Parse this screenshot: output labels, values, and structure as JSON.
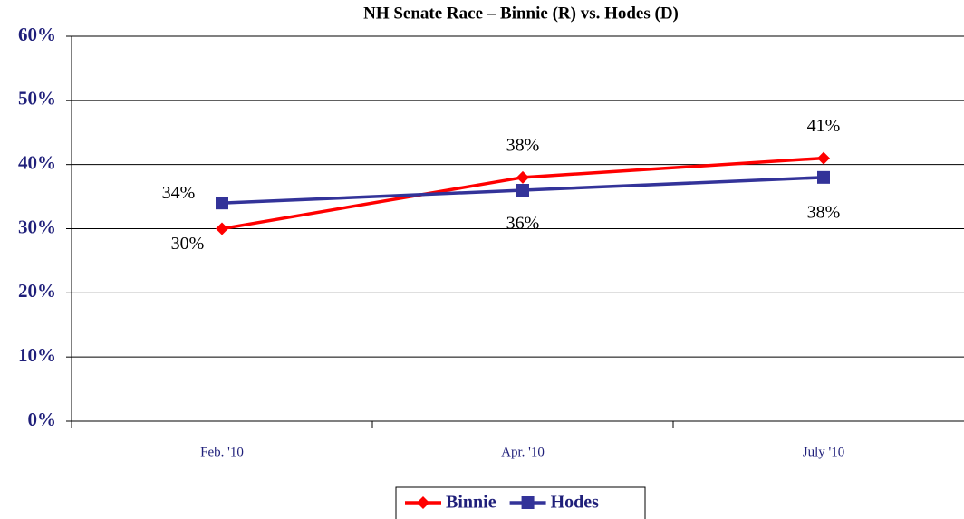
{
  "chart_data": {
    "type": "line",
    "title": "NH Senate Race – Binnie (R) vs. Hodes (D)",
    "categories": [
      "Feb. '10",
      "Apr. '10",
      "July '10"
    ],
    "series": [
      {
        "name": "Binnie",
        "color": "#ff0000",
        "marker": "diamond",
        "values": [
          30,
          38,
          41
        ],
        "value_labels": [
          "30%",
          "38%",
          "41%"
        ]
      },
      {
        "name": "Hodes",
        "color": "#333399",
        "marker": "square",
        "values": [
          34,
          36,
          38
        ],
        "value_labels": [
          "34%",
          "36%",
          "38%"
        ]
      }
    ],
    "ylim": [
      0,
      60
    ],
    "yticks": [
      {
        "value": 0,
        "label": "0%"
      },
      {
        "value": 10,
        "label": "10%"
      },
      {
        "value": 20,
        "label": "20%"
      },
      {
        "value": 30,
        "label": "30%"
      },
      {
        "value": 40,
        "label": "40%"
      },
      {
        "value": 50,
        "label": "50%"
      },
      {
        "value": 60,
        "label": "60%"
      }
    ],
    "grid": true,
    "legend": "bottom"
  }
}
